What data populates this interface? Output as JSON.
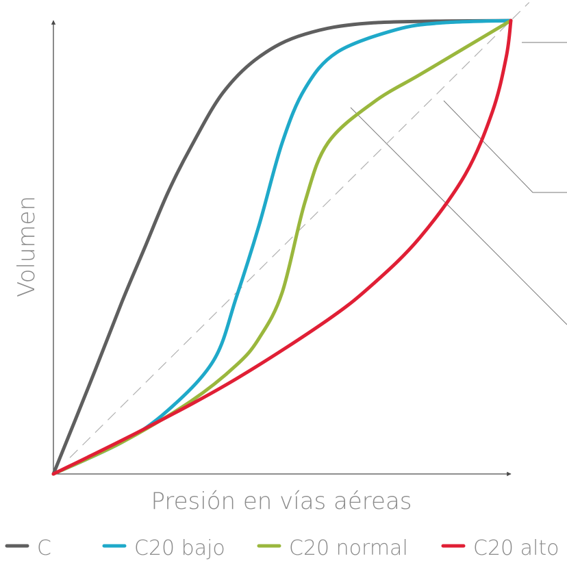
{
  "chart_data": {
    "type": "line",
    "xlabel": "Presión en vías aéreas",
    "ylabel": "Volumen",
    "xlim": [
      0,
      1
    ],
    "ylim": [
      0,
      1
    ],
    "grid": false,
    "legend_position": "bottom",
    "reference_line": {
      "style": "dashed",
      "color": "#b0b0b0",
      "points": [
        [
          0,
          0
        ],
        [
          1,
          1
        ]
      ]
    },
    "series": [
      {
        "name": "C",
        "color": "#5f5f5f",
        "points": [
          [
            0,
            0
          ],
          [
            0.08,
            0.2
          ],
          [
            0.15,
            0.38
          ],
          [
            0.2,
            0.5
          ],
          [
            0.25,
            0.62
          ],
          [
            0.3,
            0.72
          ],
          [
            0.37,
            0.84
          ],
          [
            0.45,
            0.92
          ],
          [
            0.55,
            0.97
          ],
          [
            0.7,
            0.995
          ],
          [
            1,
            1
          ]
        ]
      },
      {
        "name": "C20 bajo",
        "color": "#1fa9c9",
        "points": [
          [
            0,
            0
          ],
          [
            0.15,
            0.07
          ],
          [
            0.25,
            0.14
          ],
          [
            0.35,
            0.25
          ],
          [
            0.4,
            0.39
          ],
          [
            0.45,
            0.55
          ],
          [
            0.5,
            0.73
          ],
          [
            0.55,
            0.85
          ],
          [
            0.62,
            0.93
          ],
          [
            0.75,
            0.98
          ],
          [
            0.85,
            0.995
          ],
          [
            1,
            1
          ]
        ]
      },
      {
        "name": "C20 normal",
        "color": "#9ab73d",
        "points": [
          [
            0,
            0
          ],
          [
            0.15,
            0.07
          ],
          [
            0.3,
            0.16
          ],
          [
            0.4,
            0.24
          ],
          [
            0.45,
            0.3
          ],
          [
            0.5,
            0.4
          ],
          [
            0.55,
            0.6
          ],
          [
            0.6,
            0.73
          ],
          [
            0.7,
            0.82
          ],
          [
            0.8,
            0.88
          ],
          [
            0.9,
            0.94
          ],
          [
            1,
            1
          ]
        ]
      },
      {
        "name": "C20 alto",
        "color": "#e01f35",
        "points": [
          [
            0,
            0
          ],
          [
            0.2,
            0.1
          ],
          [
            0.4,
            0.21
          ],
          [
            0.6,
            0.34
          ],
          [
            0.7,
            0.42
          ],
          [
            0.8,
            0.52
          ],
          [
            0.9,
            0.66
          ],
          [
            0.96,
            0.8
          ],
          [
            0.99,
            0.92
          ],
          [
            1,
            1
          ]
        ]
      }
    ]
  }
}
